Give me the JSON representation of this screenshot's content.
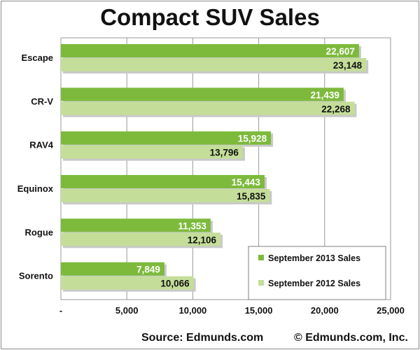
{
  "chart_data": {
    "type": "bar",
    "orientation": "horizontal",
    "title": "Compact SUV Sales",
    "categories": [
      "Escape",
      "CR-V",
      "RAV4",
      "Equinox",
      "Rogue",
      "Sorento"
    ],
    "series": [
      {
        "name": "September 2013 Sales",
        "color": "#7dba3c",
        "values": [
          22607,
          21439,
          15928,
          15443,
          11353,
          7849
        ],
        "labels": [
          "22,607",
          "21,439",
          "15,928",
          "15,443",
          "11,353",
          "7,849"
        ]
      },
      {
        "name": "September 2012 Sales",
        "color": "#c4de99",
        "values": [
          23148,
          22268,
          13796,
          15835,
          12106,
          10066
        ],
        "labels": [
          "23,148",
          "22,268",
          "13,796",
          "15,835",
          "12,106",
          "10,066"
        ]
      }
    ],
    "x_ticks": [
      0,
      5000,
      10000,
      15000,
      20000,
      25000
    ],
    "x_tick_labels": [
      "-",
      "5,000",
      "10,000",
      "15,000",
      "20,000",
      "25,000"
    ],
    "xlim": [
      0,
      25000
    ],
    "grid": true,
    "legend_position": "bottom-right"
  },
  "footer": {
    "source": "Source: Edmunds.com",
    "copyright": "© Edmunds.com, Inc."
  }
}
